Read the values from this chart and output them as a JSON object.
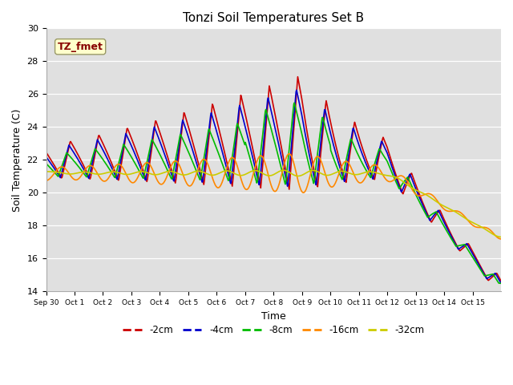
{
  "title": "Tonzi Soil Temperatures Set B",
  "xlabel": "Time",
  "ylabel": "Soil Temperature (C)",
  "ylim": [
    14,
    30
  ],
  "xlim": [
    0,
    16
  ],
  "xtick_labels": [
    "Sep 30",
    "Oct 1",
    "Oct 2",
    "Oct 3",
    "Oct 4",
    "Oct 5",
    "Oct 6",
    "Oct 7",
    "Oct 8",
    "Oct 9",
    "Oct 10",
    "Oct 11",
    "Oct 12",
    "Oct 13",
    "Oct 14",
    "Oct 15"
  ],
  "ytick_vals": [
    14,
    16,
    18,
    20,
    22,
    24,
    26,
    28,
    30
  ],
  "legend_entries": [
    "-2cm",
    "-4cm",
    "-8cm",
    "-16cm",
    "-32cm"
  ],
  "line_colors": [
    "#cc0000",
    "#0000cc",
    "#00bb00",
    "#ff8800",
    "#cccc00"
  ],
  "annotation_text": "TZ_fmet",
  "annotation_color": "#880000",
  "annotation_bg": "#ffffcc",
  "bg_color": "#e0e0e0"
}
